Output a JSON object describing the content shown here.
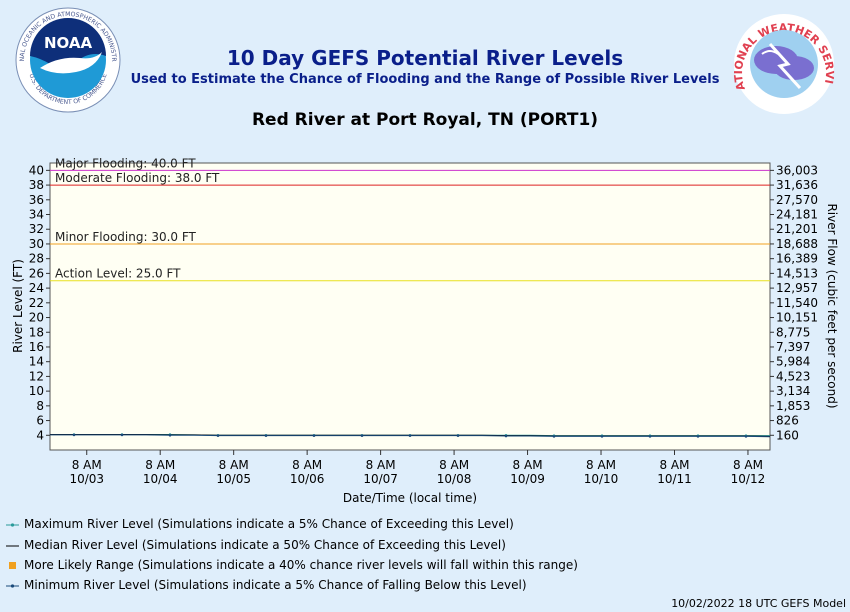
{
  "header": {
    "title": "10 Day GEFS Potential River Levels",
    "subtitle": "Used to Estimate the Chance of Flooding and the Range of Possible River Levels"
  },
  "noaa_logo": {
    "text": "NOAA",
    "ring_top": "NATIONAL OCEANIC AND ATMOSPHERIC ADMINISTRATION",
    "ring_bottom": "U.S. DEPARTMENT OF COMMERCE"
  },
  "nws_logo": {
    "ring": "NATIONAL WEATHER SERVICE"
  },
  "chart_data": {
    "type": "line",
    "title": "Red River at Port Royal, TN (PORT1)",
    "xlabel": "Date/Time (local time)",
    "ylabel": "River Level (FT)",
    "y2label": "River Flow (cubic feet per second)",
    "ylim": [
      2,
      41
    ],
    "yticks": [
      4,
      6,
      8,
      10,
      12,
      14,
      16,
      18,
      20,
      22,
      24,
      26,
      28,
      30,
      32,
      34,
      36,
      38,
      40
    ],
    "flow_ticks": [
      {
        "level": 40,
        "label": "36,003"
      },
      {
        "level": 38,
        "label": "31,636"
      },
      {
        "level": 36,
        "label": "27,570"
      },
      {
        "level": 34,
        "label": "24,181"
      },
      {
        "level": 32,
        "label": "21,201"
      },
      {
        "level": 30,
        "label": "18,688"
      },
      {
        "level": 28,
        "label": "16,389"
      },
      {
        "level": 26,
        "label": "14,513"
      },
      {
        "level": 24,
        "label": "12,957"
      },
      {
        "level": 22,
        "label": "11,540"
      },
      {
        "level": 20,
        "label": "10,151"
      },
      {
        "level": 18,
        "label": "8,775"
      },
      {
        "level": 16,
        "label": "7,397"
      },
      {
        "level": 14,
        "label": "5,984"
      },
      {
        "level": 12,
        "label": "4,523"
      },
      {
        "level": 10,
        "label": "3,134"
      },
      {
        "level": 8,
        "label": "1,853"
      },
      {
        "level": 6,
        "label": "826"
      },
      {
        "level": 4,
        "label": "160"
      }
    ],
    "xlim_days": [
      0,
      9.8
    ],
    "xticks": [
      {
        "day": 0.5,
        "time": "8 AM",
        "date": "10/03"
      },
      {
        "day": 1.5,
        "time": "8 AM",
        "date": "10/04"
      },
      {
        "day": 2.5,
        "time": "8 AM",
        "date": "10/05"
      },
      {
        "day": 3.5,
        "time": "8 AM",
        "date": "10/06"
      },
      {
        "day": 4.5,
        "time": "8 AM",
        "date": "10/07"
      },
      {
        "day": 5.5,
        "time": "8 AM",
        "date": "10/08"
      },
      {
        "day": 6.5,
        "time": "8 AM",
        "date": "10/09"
      },
      {
        "day": 7.5,
        "time": "8 AM",
        "date": "10/10"
      },
      {
        "day": 8.5,
        "time": "8 AM",
        "date": "10/11"
      },
      {
        "day": 9.5,
        "time": "8 AM",
        "date": "10/12"
      }
    ],
    "thresholds": [
      {
        "label": "Major Flooding: 40.0 FT",
        "value": 40.0,
        "color": "#cc33cc"
      },
      {
        "label": "Moderate Flooding: 38.0 FT",
        "value": 38.0,
        "color": "#dd2222"
      },
      {
        "label": "Minor Flooding: 30.0 FT",
        "value": 30.0,
        "color": "#f0a020"
      },
      {
        "label": "Action Level: 25.0 FT",
        "value": 25.0,
        "color": "#e8e020"
      }
    ],
    "series": [
      {
        "name": "Maximum River Level",
        "color": "#2a9a9a",
        "values": [
          4.1,
          4.1,
          4.1,
          4.1,
          4.1,
          4.1,
          4.05,
          4.0,
          4.0,
          4.0,
          4.0,
          4.0,
          4.0,
          4.0,
          4.0,
          4.0,
          4.0,
          4.0,
          4.0,
          4.0,
          4.0,
          3.95,
          3.95,
          3.95,
          3.95,
          3.95,
          3.95,
          3.95,
          3.95,
          3.95,
          3.95
        ]
      },
      {
        "name": "Median River Level",
        "color": "#000000",
        "values": [
          4.1,
          4.1,
          4.1,
          4.1,
          4.1,
          4.05,
          4.05,
          4.0,
          4.0,
          4.0,
          4.0,
          4.0,
          4.0,
          4.0,
          4.0,
          4.0,
          4.0,
          4.0,
          4.0,
          3.95,
          3.95,
          3.9,
          3.9,
          3.9,
          3.9,
          3.9,
          3.9,
          3.9,
          3.9,
          3.9,
          3.85
        ]
      },
      {
        "name": "Minimum River Level",
        "color": "#1a4a7a",
        "values": [
          4.05,
          4.05,
          4.05,
          4.05,
          4.05,
          4.0,
          4.0,
          3.95,
          3.95,
          3.95,
          3.95,
          3.95,
          3.95,
          3.95,
          3.95,
          3.95,
          3.95,
          3.95,
          3.95,
          3.9,
          3.9,
          3.85,
          3.85,
          3.85,
          3.85,
          3.85,
          3.85,
          3.85,
          3.85,
          3.85,
          3.8
        ]
      }
    ]
  },
  "legend": [
    {
      "label": "Maximum River Level (Simulations indicate a 5% Chance of Exceeding this Level)",
      "kind": "max",
      "color": "#2a9a9a"
    },
    {
      "label": "Median River Level (Simulations indicate a 50% Chance of Exceeding this Level)",
      "kind": "median",
      "color": "#000000"
    },
    {
      "label": "More Likely Range (Simulations indicate a 40% chance river levels will fall within this range)",
      "kind": "range",
      "color": "#f0a020"
    },
    {
      "label": "Minimum River Level (Simulations indicate a 5% Chance of Falling Below this Level)",
      "kind": "min",
      "color": "#1a4a7a"
    }
  ],
  "footer": "10/02/2022 18 UTC GEFS Model"
}
